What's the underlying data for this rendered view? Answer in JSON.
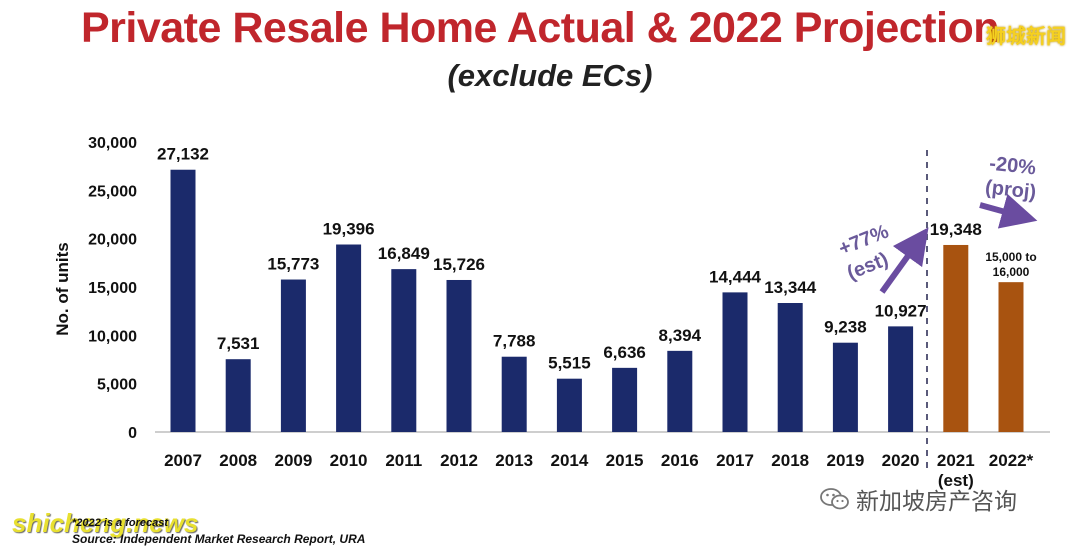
{
  "header": {
    "title": "Private Resale Home Actual & 2022 Projection",
    "subtitle": "(exclude ECs)"
  },
  "watermarks": {
    "top_right": "狮城新闻",
    "bottom_left": "shicheng.news",
    "bottom_right": "新加坡房产咨询"
  },
  "footer": {
    "note": "*2022 is a forecast",
    "source": "Source: Independent Market Research Report, URA"
  },
  "colors": {
    "actual_bar": "#1b2a6b",
    "projected_bar": "#a85310",
    "title": "#c0262c",
    "arrow": "#6a4ca0"
  },
  "annotations": {
    "growth": [
      "+77%",
      "(est)"
    ],
    "decline": [
      "-20%",
      "(proj)"
    ],
    "range_label": [
      "15,000 to",
      "16,000"
    ]
  },
  "chart_data": {
    "type": "bar",
    "title": "Private Resale Home Actual & 2022 Projection",
    "ylabel": "No. of units",
    "ylim": [
      0,
      30000
    ],
    "yticks": [
      "0",
      "5,000",
      "10,000",
      "15,000",
      "20,000",
      "25,000",
      "30,000"
    ],
    "grid": false,
    "categories": [
      "2007",
      "2008",
      "2009",
      "2010",
      "2011",
      "2012",
      "2013",
      "2014",
      "2015",
      "2016",
      "2017",
      "2018",
      "2019",
      "2020",
      "2021",
      "2022*"
    ],
    "category_sublabels": [
      "",
      "",
      "",
      "",
      "",
      "",
      "",
      "",
      "",
      "",
      "",
      "",
      "",
      "",
      "(est)",
      ""
    ],
    "values": [
      27132,
      7531,
      15773,
      19396,
      16849,
      15726,
      7788,
      5515,
      6636,
      8394,
      14444,
      13344,
      9238,
      10927,
      19348,
      15500
    ],
    "value_labels": [
      "27,132",
      "7,531",
      "15,773",
      "19,396",
      "16,849",
      "15,726",
      "7,788",
      "5,515",
      "6,636",
      "8,394",
      "14,444",
      "13,344",
      "9,238",
      "10,927",
      "19,348",
      ""
    ],
    "bar_status": [
      "actual",
      "actual",
      "actual",
      "actual",
      "actual",
      "actual",
      "actual",
      "actual",
      "actual",
      "actual",
      "actual",
      "actual",
      "actual",
      "actual",
      "projected",
      "projected"
    ]
  }
}
